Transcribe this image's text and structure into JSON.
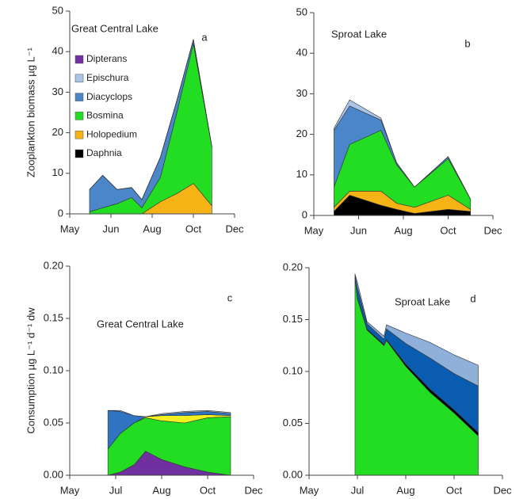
{
  "chart_data": [
    {
      "type": "area",
      "stacked": true,
      "title": "Great Central Lake",
      "panel_label": "a",
      "ylabel": "Zooplankton biomass µg L⁻¹",
      "legend": "upper left",
      "grid": false,
      "x": [
        0.48,
        0.8,
        1.15,
        1.5,
        1.75,
        2.2,
        2.6,
        3.0,
        3.45
      ],
      "xlim": [
        0,
        4
      ],
      "xticks": [
        {
          "value": 0,
          "label": "May"
        },
        {
          "value": 1,
          "label": "Jun"
        },
        {
          "value": 2,
          "label": "Aug"
        },
        {
          "value": 3,
          "label": "Oct"
        },
        {
          "value": 4,
          "label": "Dec"
        }
      ],
      "ylim": [
        0,
        50
      ],
      "yticks": [
        0,
        10,
        20,
        30,
        40,
        50
      ],
      "series": [
        {
          "name": "Daphnia",
          "color": "#000000",
          "values": [
            0,
            0,
            0,
            0,
            0,
            0,
            0,
            0,
            0
          ]
        },
        {
          "name": "Holopedium",
          "color": "#f5b316",
          "values": [
            0,
            0,
            0,
            0,
            0,
            3,
            5,
            7.5,
            2
          ]
        },
        {
          "name": "Bosmina",
          "color": "#22dd22",
          "values": [
            0.5,
            1.5,
            2.5,
            4,
            1.5,
            6,
            20,
            34.5,
            14.5
          ]
        },
        {
          "name": "Diacyclops",
          "color": "#4a86c8",
          "values": [
            5.5,
            8,
            3.5,
            2.5,
            2,
            5,
            3,
            1,
            0
          ]
        },
        {
          "name": "Epischura",
          "color": "#a9c4e4",
          "values": [
            0,
            0,
            0,
            0,
            0,
            0,
            0,
            0,
            0
          ]
        },
        {
          "name": "Dipterans",
          "color": "#7030a0",
          "values": [
            0,
            0,
            0,
            0,
            0,
            0,
            0,
            0,
            0
          ]
        }
      ]
    },
    {
      "type": "area",
      "stacked": true,
      "title": "Sproat Lake",
      "panel_label": "b",
      "grid": false,
      "x": [
        0.45,
        0.8,
        1.5,
        1.85,
        2.25,
        3.0,
        3.5
      ],
      "xlim": [
        0,
        4
      ],
      "xticks": [
        {
          "value": 0,
          "label": "May"
        },
        {
          "value": 1,
          "label": "Jun"
        },
        {
          "value": 2,
          "label": "Aug"
        },
        {
          "value": 3,
          "label": "Oct"
        },
        {
          "value": 4,
          "label": "Dec"
        }
      ],
      "ylim": [
        0,
        50
      ],
      "yticks": [
        0,
        10,
        20,
        30,
        40,
        50
      ],
      "series": [
        {
          "color": "#000000",
          "values": [
            1,
            5,
            2.5,
            1.5,
            0.5,
            1.5,
            1
          ]
        },
        {
          "color": "#f5b316",
          "values": [
            1,
            1,
            3.5,
            1.5,
            1.5,
            3.5,
            0.5
          ]
        },
        {
          "color": "#22dd22",
          "values": [
            5,
            11.5,
            15,
            9.5,
            5,
            9,
            2.5
          ]
        },
        {
          "color": "#4a86c8",
          "values": [
            14,
            9.5,
            2.5,
            0.5,
            0,
            0.5,
            0
          ]
        },
        {
          "color": "#a9c4e4",
          "values": [
            0.5,
            1.5,
            0.5,
            0,
            0,
            0,
            0
          ]
        }
      ]
    },
    {
      "type": "area",
      "stacked": true,
      "title": "Great Central Lake",
      "panel_label": "c",
      "ylabel": "Consumption µg L⁻¹ d⁻¹ dw",
      "grid": false,
      "x": [
        0.83,
        1.1,
        1.4,
        1.65,
        2.0,
        2.5,
        3.0,
        3.5
      ],
      "xlim": [
        0,
        4
      ],
      "xticks": [
        {
          "value": 0,
          "label": "May"
        },
        {
          "value": 1,
          "label": "Jul"
        },
        {
          "value": 2,
          "label": "Aug"
        },
        {
          "value": 3,
          "label": "Oct"
        },
        {
          "value": 4,
          "label": "Dec"
        }
      ],
      "ylim": [
        0,
        0.2
      ],
      "yticks": [
        {
          "value": 0,
          "label": "0.00"
        },
        {
          "value": 0.05,
          "label": "0.05"
        },
        {
          "value": 0.1,
          "label": "0.10"
        },
        {
          "value": 0.15,
          "label": "0.15"
        },
        {
          "value": 0.2,
          "label": "0.20"
        }
      ],
      "series": [
        {
          "color": "#7030a0",
          "values": [
            0,
            0.003,
            0.01,
            0.023,
            0.015,
            0.008,
            0.003,
            0
          ]
        },
        {
          "color": "#22dd22",
          "values": [
            0.025,
            0.037,
            0.04,
            0.032,
            0.037,
            0.042,
            0.052,
            0.056
          ]
        },
        {
          "color": "#f5f020",
          "values": [
            0,
            0,
            0,
            0.001,
            0.005,
            0.007,
            0.003,
            0.001
          ]
        },
        {
          "color": "#2e74c0",
          "values": [
            0.037,
            0.021,
            0.007,
            0,
            0.001,
            0.003,
            0.003,
            0.002
          ]
        },
        {
          "color": "#a9c4e4",
          "values": [
            0,
            0.001,
            0,
            0,
            0.001,
            0.001,
            0.001,
            0.001
          ]
        }
      ]
    },
    {
      "type": "area",
      "stacked": true,
      "title": "Sproat Lake",
      "panel_label": "d",
      "grid": false,
      "x": [
        0.95,
        1.0,
        1.2,
        1.55,
        1.6,
        2.0,
        2.5,
        3.0,
        3.5
      ],
      "xlim": [
        0,
        4
      ],
      "xticks": [
        {
          "value": 0,
          "label": "May"
        },
        {
          "value": 1,
          "label": "Jul"
        },
        {
          "value": 2,
          "label": "Aug"
        },
        {
          "value": 3,
          "label": "Oct"
        },
        {
          "value": 4,
          "label": "Dec"
        }
      ],
      "ylim": [
        0,
        0.2
      ],
      "yticks": [
        {
          "value": 0,
          "label": "0.00"
        },
        {
          "value": 0.05,
          "label": "0.05"
        },
        {
          "value": 0.1,
          "label": "0.10"
        },
        {
          "value": 0.15,
          "label": "0.15"
        },
        {
          "value": 0.2,
          "label": "0.20"
        }
      ],
      "series": [
        {
          "color": "#22dd22",
          "values": [
            0.19,
            0.17,
            0.14,
            0.125,
            0.13,
            0.105,
            0.08,
            0.06,
            0.038
          ]
        },
        {
          "color": "#000000",
          "values": [
            0,
            0.001,
            0.001,
            0.001,
            0.001,
            0.002,
            0.003,
            0.003,
            0.003
          ]
        },
        {
          "color": "#0a5cb0",
          "values": [
            0.003,
            0.01,
            0.005,
            0.005,
            0.01,
            0.02,
            0.03,
            0.035,
            0.045
          ]
        },
        {
          "color": "#8fb0d8",
          "values": [
            0.001,
            0.005,
            0.002,
            0.003,
            0.004,
            0.01,
            0.015,
            0.018,
            0.02
          ]
        }
      ]
    }
  ]
}
